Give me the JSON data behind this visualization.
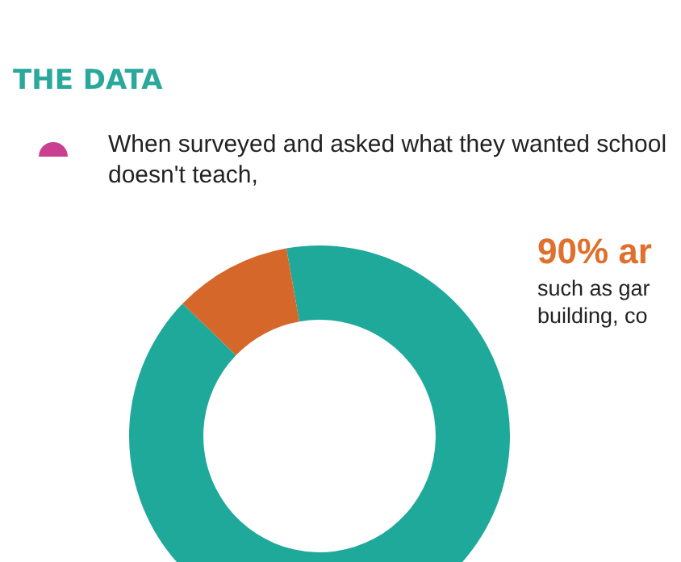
{
  "chart_data": {
    "type": "donut",
    "title": "THE DATA",
    "subtitle": "When surveyed and asked what they wanted school doesn't teach,",
    "categories": [
      null,
      null
    ],
    "values": [
      90,
      10
    ],
    "colors": [
      "#1fa99b",
      "#d5672b"
    ],
    "annotations": [
      "90% ar",
      "such as gar",
      "building, co"
    ]
  }
}
